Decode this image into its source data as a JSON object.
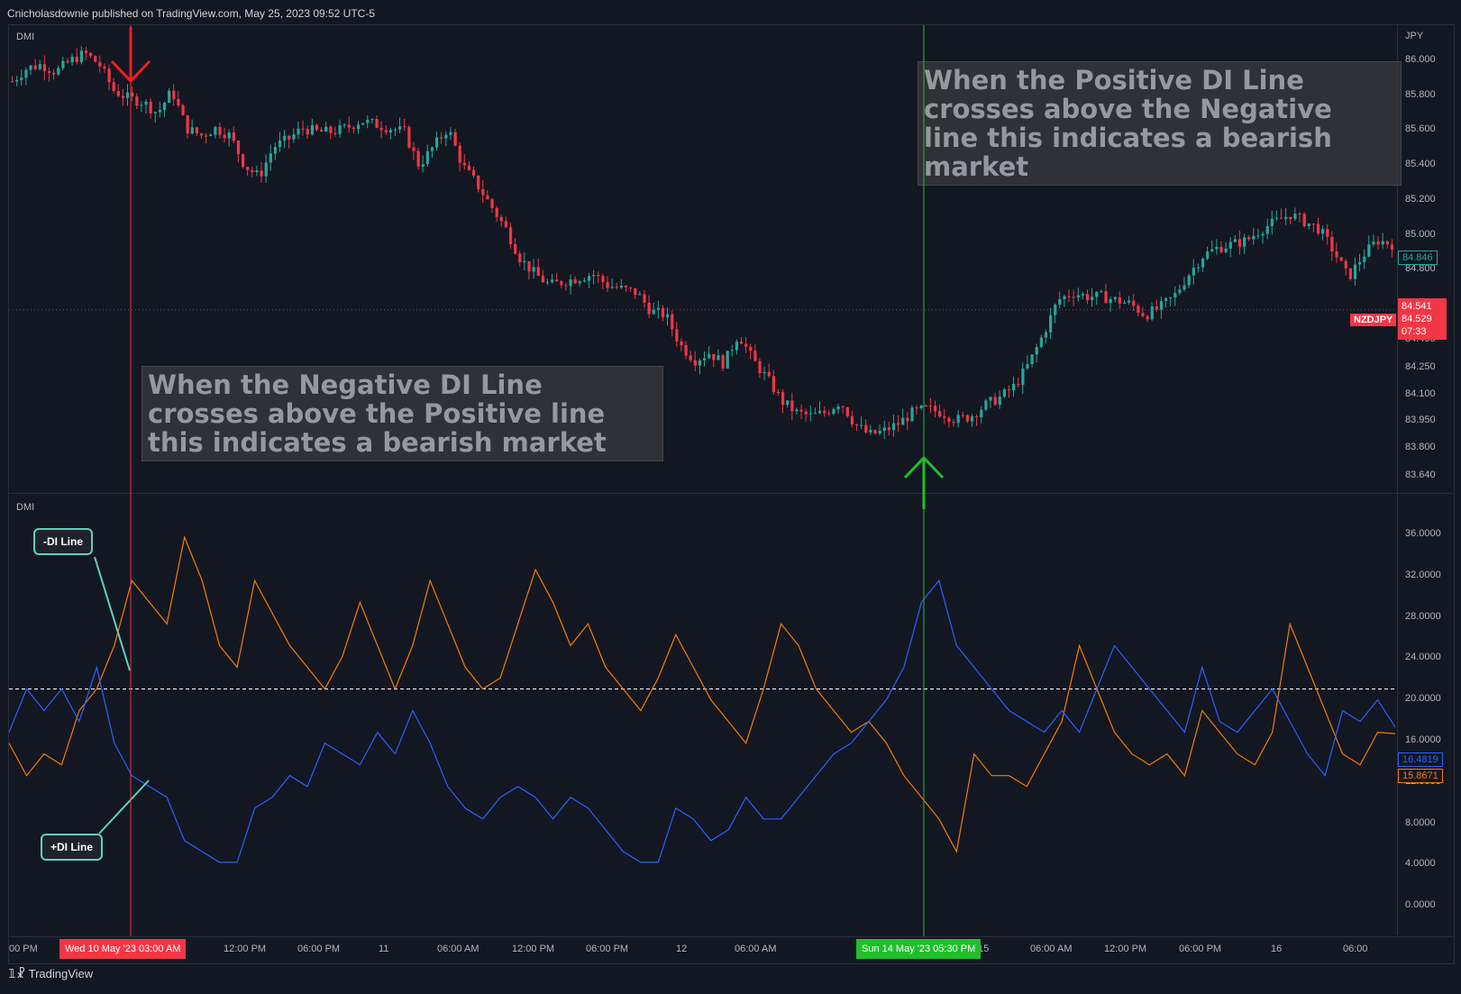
{
  "header": {
    "publish_text": "Cnicholasdownie published on TradingView.com, May 25, 2023 09:52 UTC-5"
  },
  "price_pane": {
    "label": "DMI",
    "currency": "JPY",
    "y_ticks": [
      "86.000",
      "85.800",
      "85.600",
      "85.400",
      "85.200",
      "85.000",
      "84.800",
      "84.600",
      "84.400",
      "84.250",
      "84.100",
      "83.950",
      "83.800",
      "83.640"
    ],
    "last_price_tag": "84.846",
    "symbol_tag": "NZDJPY",
    "current_price_tags": [
      "84.541",
      "84.529",
      "07:33"
    ]
  },
  "indicator_pane": {
    "label": "DMI",
    "y_ticks": [
      "36.0000",
      "32.0000",
      "28.0000",
      "24.0000",
      "20.0000",
      "16.0000",
      "12.0000",
      "8.0000",
      "4.0000",
      "0.0000"
    ],
    "plus_di_tag": "16.4819",
    "minus_di_tag": "15.8671",
    "reference_level": 20
  },
  "time_axis": {
    "ticks": [
      "00 PM",
      "12:00 PM",
      "06:00 PM",
      "11",
      "06:00 AM",
      "12:00 PM",
      "06:00 PM",
      "12",
      "06:00 AM",
      "15",
      "06:00 AM",
      "12:00 PM",
      "06:00 PM",
      "16",
      "06:00"
    ],
    "highlight_left": "Wed 10 May '23   03:00 AM",
    "highlight_right": "Sun 14 May '23   05:30 PM"
  },
  "annotations": {
    "bearish_note": "When the Negative DI Line crosses above the Positive line this indicates a bearish market",
    "bullish_note": "When the Positive DI Line crosses above the Negative line this indicates a bearish market",
    "minus_di_callout": "-DI Line",
    "plus_di_callout": "+DI Line"
  },
  "footer": {
    "brand": "TradingView"
  },
  "colors": {
    "up": "#26a69a",
    "down": "#f23645",
    "minus_di": "#f57c00",
    "plus_di": "#2962ff",
    "sell_marker": "#ff1a1a",
    "buy_marker": "#1fbf2a",
    "background": "#131722"
  },
  "chart_data": [
    {
      "type": "candlestick",
      "title": "NZDJPY",
      "ylabel": "JPY",
      "ylim": [
        83.55,
        86.05
      ],
      "close_path": [
        85.75,
        85.82,
        85.84,
        85.8,
        85.86,
        85.9,
        85.84,
        85.7,
        85.66,
        85.64,
        85.58,
        85.7,
        85.5,
        85.46,
        85.5,
        85.46,
        85.3,
        85.24,
        85.4,
        85.44,
        85.5,
        85.48,
        85.48,
        85.5,
        85.54,
        85.52,
        85.5,
        85.48,
        85.3,
        85.4,
        85.5,
        85.3,
        85.2,
        85.08,
        84.96,
        84.8,
        84.72,
        84.66,
        84.68,
        84.7,
        84.72,
        84.66,
        84.64,
        84.62,
        84.52,
        84.5,
        84.34,
        84.26,
        84.3,
        84.24,
        84.4,
        84.26,
        84.16,
        84.04,
        83.98,
        83.96,
        83.98,
        84.04,
        83.92,
        83.86,
        83.88,
        83.92,
        83.98,
        84.0,
        83.98,
        83.94,
        83.96,
        84.02,
        84.06,
        84.12,
        84.24,
        84.4,
        84.58,
        84.62,
        84.6,
        84.6,
        84.58,
        84.56,
        84.5,
        84.54,
        84.6,
        84.72,
        84.82,
        84.86,
        84.88,
        84.9,
        84.96,
        85.0,
        85.04,
        85.0,
        84.96,
        84.84,
        84.7,
        84.82,
        84.9,
        84.88
      ],
      "highlights": [
        {
          "label": "Wed 10 May '23 03:00 AM",
          "signal": "sell"
        },
        {
          "label": "Sun 14 May '23 05:30 PM",
          "signal": "buy"
        }
      ]
    },
    {
      "type": "line",
      "title": "DMI",
      "ylim": [
        0,
        38
      ],
      "reference_line": 20,
      "series": [
        {
          "name": "-DI Line",
          "values": [
            15,
            12,
            14,
            13,
            18,
            20,
            24,
            30,
            28,
            26,
            34,
            30,
            24,
            22,
            30,
            27,
            24,
            22,
            20,
            23,
            28,
            24,
            20,
            24,
            30,
            26,
            22,
            20,
            21,
            26,
            31,
            28,
            24,
            26,
            22,
            20,
            18,
            21,
            25,
            22,
            19,
            17,
            15,
            20,
            26,
            24,
            20,
            18,
            16,
            17,
            15,
            12,
            10,
            8,
            5,
            14,
            12,
            12,
            11,
            14,
            17,
            24,
            20,
            16,
            14,
            13,
            14,
            12,
            18,
            16,
            14,
            13,
            16,
            26,
            22,
            18,
            14,
            13,
            16,
            15.87
          ]
        },
        {
          "name": "+DI Line",
          "values": [
            16,
            20,
            18,
            20,
            17,
            22,
            15,
            12,
            11,
            10,
            6,
            5,
            4,
            4,
            9,
            10,
            12,
            11,
            15,
            14,
            13,
            16,
            14,
            18,
            15,
            11,
            9,
            8,
            10,
            11,
            10,
            8,
            10,
            9,
            7,
            5,
            4,
            4,
            9,
            8,
            6,
            7,
            10,
            8,
            8,
            10,
            12,
            14,
            15,
            17,
            19,
            22,
            28,
            30,
            24,
            22,
            20,
            18,
            17,
            16,
            18,
            16,
            20,
            24,
            22,
            20,
            18,
            16,
            22,
            17,
            16,
            18,
            20,
            17,
            14,
            12,
            18,
            17,
            19,
            16.48
          ]
        }
      ]
    }
  ]
}
